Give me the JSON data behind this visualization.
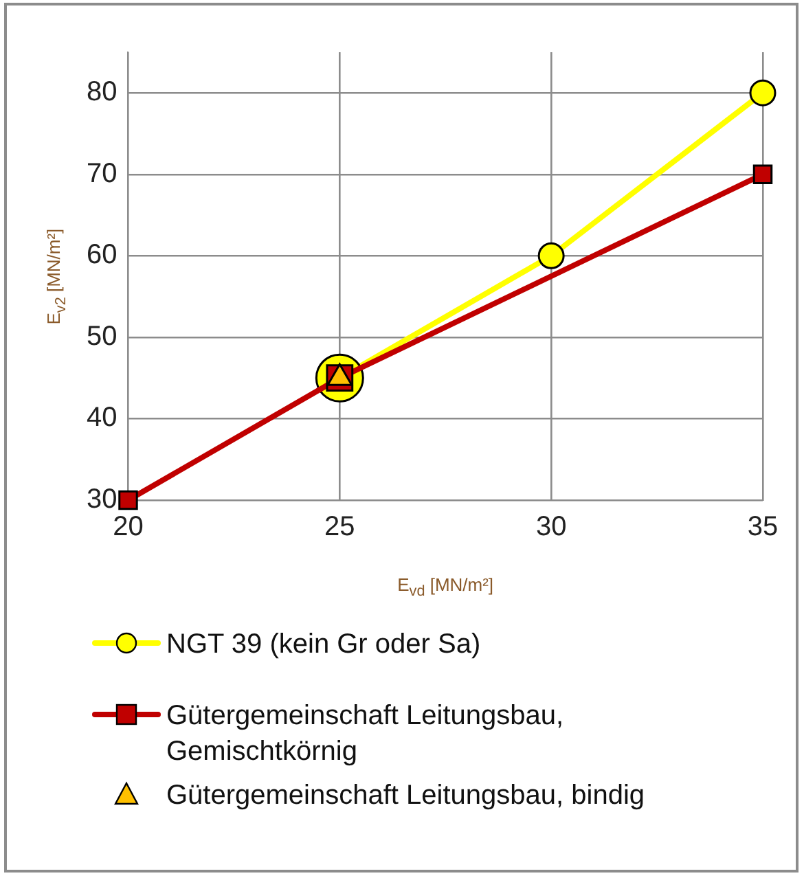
{
  "chart_data": {
    "type": "line",
    "xlabel": "E$_{vd}$ [MN/m²]",
    "ylabel": "E$_{v2}$ [MN/m²]",
    "xlim": [
      20,
      35
    ],
    "ylim": [
      30,
      85
    ],
    "xticks": [
      20,
      25,
      30,
      35
    ],
    "yticks": [
      30,
      40,
      50,
      60,
      70,
      80
    ],
    "grid": true,
    "legend": "bottom",
    "line_style": "solid",
    "series": [
      {
        "name": "NGT 39 (kein Gr oder Sa)",
        "marker": "circle",
        "color": "#ffff00",
        "x": [
          25,
          30,
          35
        ],
        "values": [
          45,
          60,
          80
        ]
      },
      {
        "name": "Gütergemeinschaft Leitungsbau, Gemischtkörnig",
        "marker": "square",
        "color": "#c00000",
        "x": [
          20,
          25,
          35
        ],
        "values": [
          30,
          45,
          70
        ]
      },
      {
        "name": "Gütergemeinschaft Leitungsbau, bindig",
        "type": "scatter",
        "marker": "triangle",
        "color": "#ffc000",
        "x": [
          25
        ],
        "values": [
          45
        ]
      }
    ]
  }
}
